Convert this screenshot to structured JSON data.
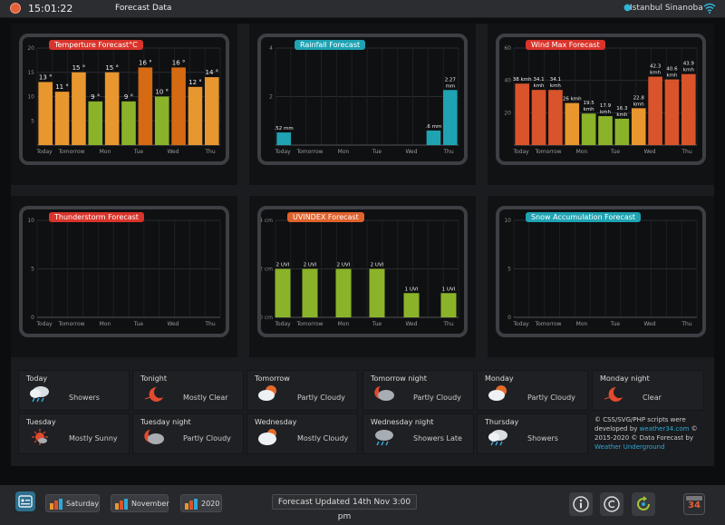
{
  "header": {
    "clock": "15:01:22",
    "title": "Forecast Data",
    "location": "Istanbul Sinanoba"
  },
  "panels": [
    {
      "title": "Temperture Forecast°C",
      "title_color": "#d9342b",
      "chart_data": {
        "type": "bar",
        "ylim": [
          0,
          20
        ],
        "yticks": [
          "20",
          "15",
          "10",
          "5"
        ],
        "xtick_labels": [
          "Today",
          "Tomorrow",
          "Mon",
          "Tue",
          "Wed",
          "Thu"
        ],
        "values": [
          13,
          11,
          15,
          9,
          15,
          9,
          16,
          10,
          16,
          12,
          14
        ],
        "labels": [
          "13 °",
          "11 °",
          "15 °",
          "9 °",
          "15 °",
          "9 °",
          "16 °",
          "10 °",
          "16 °",
          "12 °",
          "14 °"
        ],
        "colors": [
          "#e8962e",
          "#e8962e",
          "#e8962e",
          "#8ab32a",
          "#e8962e",
          "#8ab32a",
          "#d56a12",
          "#8ab32a",
          "#d56a12",
          "#e8962e",
          "#e8962e"
        ]
      }
    },
    {
      "title": "Rainfall Forecast",
      "title_color": "#1fa3b3",
      "chart_data": {
        "type": "bar",
        "ylim": [
          0,
          4
        ],
        "yticks": [
          "4",
          "2"
        ],
        "xtick_labels": [
          "Today",
          "Tomorrow",
          "Mon",
          "Tue",
          "Wed",
          "Thu"
        ],
        "values": [
          0.52,
          0,
          0,
          0,
          0,
          0,
          0,
          0,
          0,
          0.6,
          2.27
        ],
        "labels": [
          ".52 mm",
          "",
          "",
          "",
          "",
          "",
          "",
          "",
          "",
          ".6 mm",
          "2.27 mm"
        ],
        "colors": [
          "#1fa3b3",
          "#1fa3b3",
          "#1fa3b3",
          "#1fa3b3",
          "#1fa3b3",
          "#1fa3b3",
          "#1fa3b3",
          "#1fa3b3",
          "#1fa3b3",
          "#1fa3b3",
          "#1fa3b3"
        ]
      }
    },
    {
      "title": "Wind Max Forecast",
      "title_color": "#d9342b",
      "chart_data": {
        "type": "bar",
        "ylim": [
          0,
          60
        ],
        "yticks": [
          "60",
          "40",
          "20"
        ],
        "xtick_labels": [
          "Today",
          "Tomorrow",
          "Mon",
          "Tue",
          "Wed",
          "Thu"
        ],
        "values": [
          38,
          34.1,
          34.1,
          26,
          19.5,
          17.9,
          16.3,
          22.8,
          42.3,
          40.6,
          43.9
        ],
        "labels": [
          "38 kmh",
          "34.1 kmh",
          "34.1 kmh",
          "26 kmh",
          "19.5 kmh",
          "17.9 kmh",
          "16.3 kmh",
          "22.8 kmh",
          "42.3 kmh",
          "40.6 kmh",
          "43.9 kmh"
        ],
        "colors": [
          "#d9542b",
          "#d9542b",
          "#d9542b",
          "#e8962e",
          "#8ab32a",
          "#8ab32a",
          "#8ab32a",
          "#e8962e",
          "#d9542b",
          "#d9542b",
          "#d9542b"
        ]
      }
    },
    {
      "title": "Thunderstorm Forecast",
      "title_color": "#d9342b",
      "chart_data": {
        "type": "bar",
        "ylim": [
          0,
          10
        ],
        "yticks": [
          "10",
          "5",
          "0"
        ],
        "xtick_labels": [
          "Today",
          "Tomorrow",
          "Mon",
          "Tue",
          "Wed",
          "Thu"
        ],
        "values": [],
        "labels": [],
        "colors": []
      }
    },
    {
      "title": "UVINDEX Forecast",
      "title_color": "#e0622c",
      "chart_data": {
        "type": "bar",
        "ylim": [
          0,
          4
        ],
        "yticks": [
          "4 cm",
          "2 cm",
          "0 cm"
        ],
        "xtick_labels": [
          "Today",
          "Tomorrow",
          "Mon",
          "Tue",
          "Wed",
          "Thu"
        ],
        "values": [
          2,
          2,
          2,
          2,
          1,
          1
        ],
        "labels": [
          "2 UVI",
          "2 UVI",
          "2 UVI",
          "2 UVI",
          "1 UVI",
          "1 UVI"
        ],
        "colors": [
          "#8ab32a",
          "#8ab32a",
          "#8ab32a",
          "#8ab32a",
          "#8ab32a",
          "#8ab32a"
        ]
      }
    },
    {
      "title": "Snow Accumulation Forecast",
      "title_color": "#1fa3b3",
      "chart_data": {
        "type": "bar",
        "ylim": [
          0,
          10
        ],
        "yticks": [
          "10",
          "5",
          "0"
        ],
        "xtick_labels": [
          "Today",
          "Tomorrow",
          "Mon",
          "Tue",
          "Wed",
          "Thu"
        ],
        "values": [],
        "labels": [],
        "colors": []
      }
    }
  ],
  "forecast": [
    {
      "day": "Today",
      "text": "Showers",
      "icon": "showers-icon"
    },
    {
      "day": "Tonight",
      "text": "Mostly Clear",
      "icon": "moon-clear-icon"
    },
    {
      "day": "Tomorrow",
      "text": "Partly Cloudy",
      "icon": "partly-cloudy-icon"
    },
    {
      "day": "Tomorrow night",
      "text": "Partly Cloudy",
      "icon": "partly-cloudy-night-icon"
    },
    {
      "day": "Monday",
      "text": "Partly Cloudy",
      "icon": "partly-cloudy-icon"
    },
    {
      "day": "Monday night",
      "text": "Clear",
      "icon": "moon-clear-icon"
    },
    {
      "day": "Tuesday",
      "text": "Mostly Sunny",
      "icon": "mostly-sunny-icon"
    },
    {
      "day": "Tuesday night",
      "text": "Partly Cloudy",
      "icon": "partly-cloudy-night-icon"
    },
    {
      "day": "Wednesday",
      "text": "Mostly Cloudy",
      "icon": "mostly-cloudy-icon"
    },
    {
      "day": "Wednesday night",
      "text": "Showers Late",
      "icon": "showers-late-icon"
    },
    {
      "day": "Thursday",
      "text": "Showers",
      "icon": "showers-icon"
    }
  ],
  "credit": {
    "line1": "© CSS/SVG/PHP scripts were",
    "line2a": "developed by ",
    "link1": "weather34.com",
    "line2b": " ©",
    "line3": "2015-2020 © Data Forecast by",
    "link2": "Weather Underground"
  },
  "footer": {
    "day_btn": "Saturday",
    "month_btn": "November",
    "year_btn": "2020",
    "updated": "Forecast Updated 14th Nov 3:00 pm",
    "badge": "34"
  }
}
